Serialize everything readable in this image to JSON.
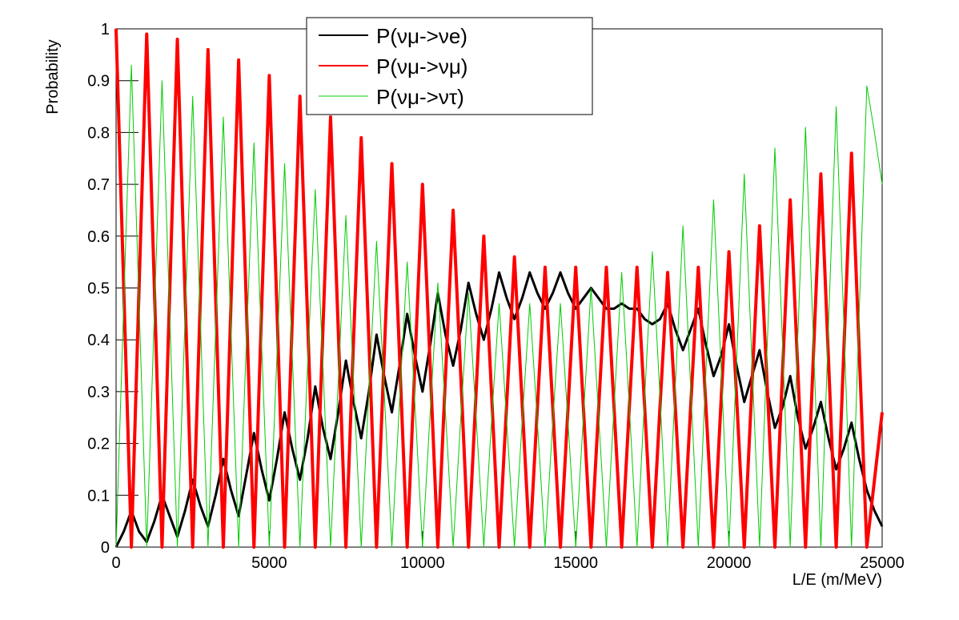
{
  "chart_data": {
    "type": "line",
    "x_label": "L/E (m/MeV)",
    "y_label": "Probability",
    "xlim": [
      0,
      25000
    ],
    "xticks": [
      0,
      5000,
      10000,
      15000,
      20000,
      25000
    ],
    "ylim": [
      0,
      1
    ],
    "yticks": [
      0,
      0.1,
      0.2,
      0.3,
      0.4,
      0.5,
      0.6,
      0.7,
      0.8,
      0.9,
      1
    ],
    "x": [
      0,
      250,
      500,
      750,
      1000,
      1250,
      1500,
      1750,
      2000,
      2250,
      2500,
      2750,
      3000,
      3250,
      3500,
      3750,
      4000,
      4250,
      4500,
      4750,
      5000,
      5250,
      5500,
      5750,
      6000,
      6250,
      6500,
      6750,
      7000,
      7250,
      7500,
      7750,
      8000,
      8250,
      8500,
      8750,
      9000,
      9250,
      9500,
      9750,
      10000,
      10250,
      10500,
      10750,
      11000,
      11250,
      11500,
      11750,
      12000,
      12250,
      12500,
      12750,
      13000,
      13250,
      13500,
      13750,
      14000,
      14250,
      14500,
      14750,
      15000,
      15250,
      15500,
      15750,
      16000,
      16250,
      16500,
      16750,
      17000,
      17250,
      17500,
      17750,
      18000,
      18250,
      18500,
      18750,
      19000,
      19250,
      19500,
      19750,
      20000,
      20250,
      20500,
      20750,
      21000,
      21250,
      21500,
      21750,
      22000,
      22250,
      22500,
      22750,
      23000,
      23250,
      23500,
      23750,
      24000,
      24250,
      24500,
      24750,
      25000
    ],
    "series": [
      {
        "name": "P(νμ->νe)",
        "color": "#000000",
        "width": 3,
        "values": [
          0,
          0.03,
          0.07,
          0.03,
          0.01,
          0.05,
          0.1,
          0.06,
          0.02,
          0.07,
          0.13,
          0.08,
          0.04,
          0.1,
          0.17,
          0.11,
          0.06,
          0.14,
          0.22,
          0.15,
          0.09,
          0.17,
          0.26,
          0.19,
          0.13,
          0.21,
          0.31,
          0.23,
          0.17,
          0.26,
          0.36,
          0.28,
          0.21,
          0.3,
          0.41,
          0.33,
          0.26,
          0.35,
          0.45,
          0.37,
          0.3,
          0.39,
          0.49,
          0.41,
          0.35,
          0.42,
          0.51,
          0.45,
          0.4,
          0.46,
          0.53,
          0.48,
          0.44,
          0.48,
          0.53,
          0.49,
          0.46,
          0.49,
          0.53,
          0.49,
          0.46,
          0.48,
          0.5,
          0.48,
          0.46,
          0.46,
          0.47,
          0.46,
          0.46,
          0.44,
          0.43,
          0.44,
          0.47,
          0.42,
          0.38,
          0.42,
          0.46,
          0.39,
          0.33,
          0.37,
          0.43,
          0.35,
          0.28,
          0.33,
          0.38,
          0.3,
          0.23,
          0.27,
          0.33,
          0.25,
          0.19,
          0.23,
          0.28,
          0.21,
          0.15,
          0.19,
          0.24,
          0.17,
          0.11,
          0.07,
          0.04
        ]
      },
      {
        "name": "P(νμ->νμ)",
        "color": "#ff0000",
        "width": 4,
        "values": [
          1.0,
          0.5,
          0,
          0.5,
          0.99,
          0.5,
          0,
          0.49,
          0.98,
          0.49,
          0,
          0.48,
          0.96,
          0.48,
          0,
          0.47,
          0.94,
          0.47,
          0,
          0.46,
          0.91,
          0.46,
          0,
          0.44,
          0.87,
          0.44,
          0,
          0.42,
          0.83,
          0.42,
          0,
          0.4,
          0.79,
          0.4,
          0,
          0.37,
          0.74,
          0.37,
          0,
          0.35,
          0.7,
          0.35,
          0,
          0.33,
          0.65,
          0.33,
          0,
          0.3,
          0.6,
          0.3,
          0,
          0.28,
          0.56,
          0.28,
          0,
          0.27,
          0.54,
          0.27,
          0,
          0.27,
          0.54,
          0.27,
          0,
          0.27,
          0.54,
          0.27,
          0,
          0.27,
          0.54,
          0.27,
          0,
          0.27,
          0.53,
          0.27,
          0,
          0.27,
          0.54,
          0.27,
          0,
          0.29,
          0.57,
          0.29,
          0,
          0.31,
          0.62,
          0.31,
          0,
          0.34,
          0.67,
          0.34,
          0,
          0.36,
          0.72,
          0.36,
          0,
          0.38,
          0.76,
          0.38,
          0,
          0.13,
          0.26
        ]
      },
      {
        "name": "P(νμ->ντ)",
        "color": "#00cc00",
        "width": 1,
        "values": [
          0,
          0.47,
          0.93,
          0.47,
          0,
          0.45,
          0.9,
          0.45,
          0,
          0.44,
          0.87,
          0.44,
          0,
          0.42,
          0.83,
          0.42,
          0,
          0.39,
          0.78,
          0.39,
          0,
          0.37,
          0.74,
          0.37,
          0,
          0.35,
          0.69,
          0.35,
          0,
          0.32,
          0.64,
          0.32,
          0,
          0.3,
          0.59,
          0.3,
          0,
          0.28,
          0.55,
          0.28,
          0,
          0.26,
          0.51,
          0.26,
          0,
          0.25,
          0.49,
          0.25,
          0,
          0.24,
          0.47,
          0.24,
          0,
          0.24,
          0.47,
          0.24,
          0,
          0.24,
          0.47,
          0.24,
          0,
          0.25,
          0.5,
          0.25,
          0,
          0.27,
          0.53,
          0.27,
          0,
          0.29,
          0.57,
          0.29,
          0,
          0.31,
          0.62,
          0.31,
          0,
          0.34,
          0.67,
          0.34,
          0,
          0.36,
          0.72,
          0.36,
          0,
          0.39,
          0.77,
          0.39,
          0,
          0.41,
          0.81,
          0.41,
          0,
          0.43,
          0.85,
          0.43,
          0,
          0.45,
          0.89,
          0.8,
          0.7
        ]
      }
    ]
  }
}
